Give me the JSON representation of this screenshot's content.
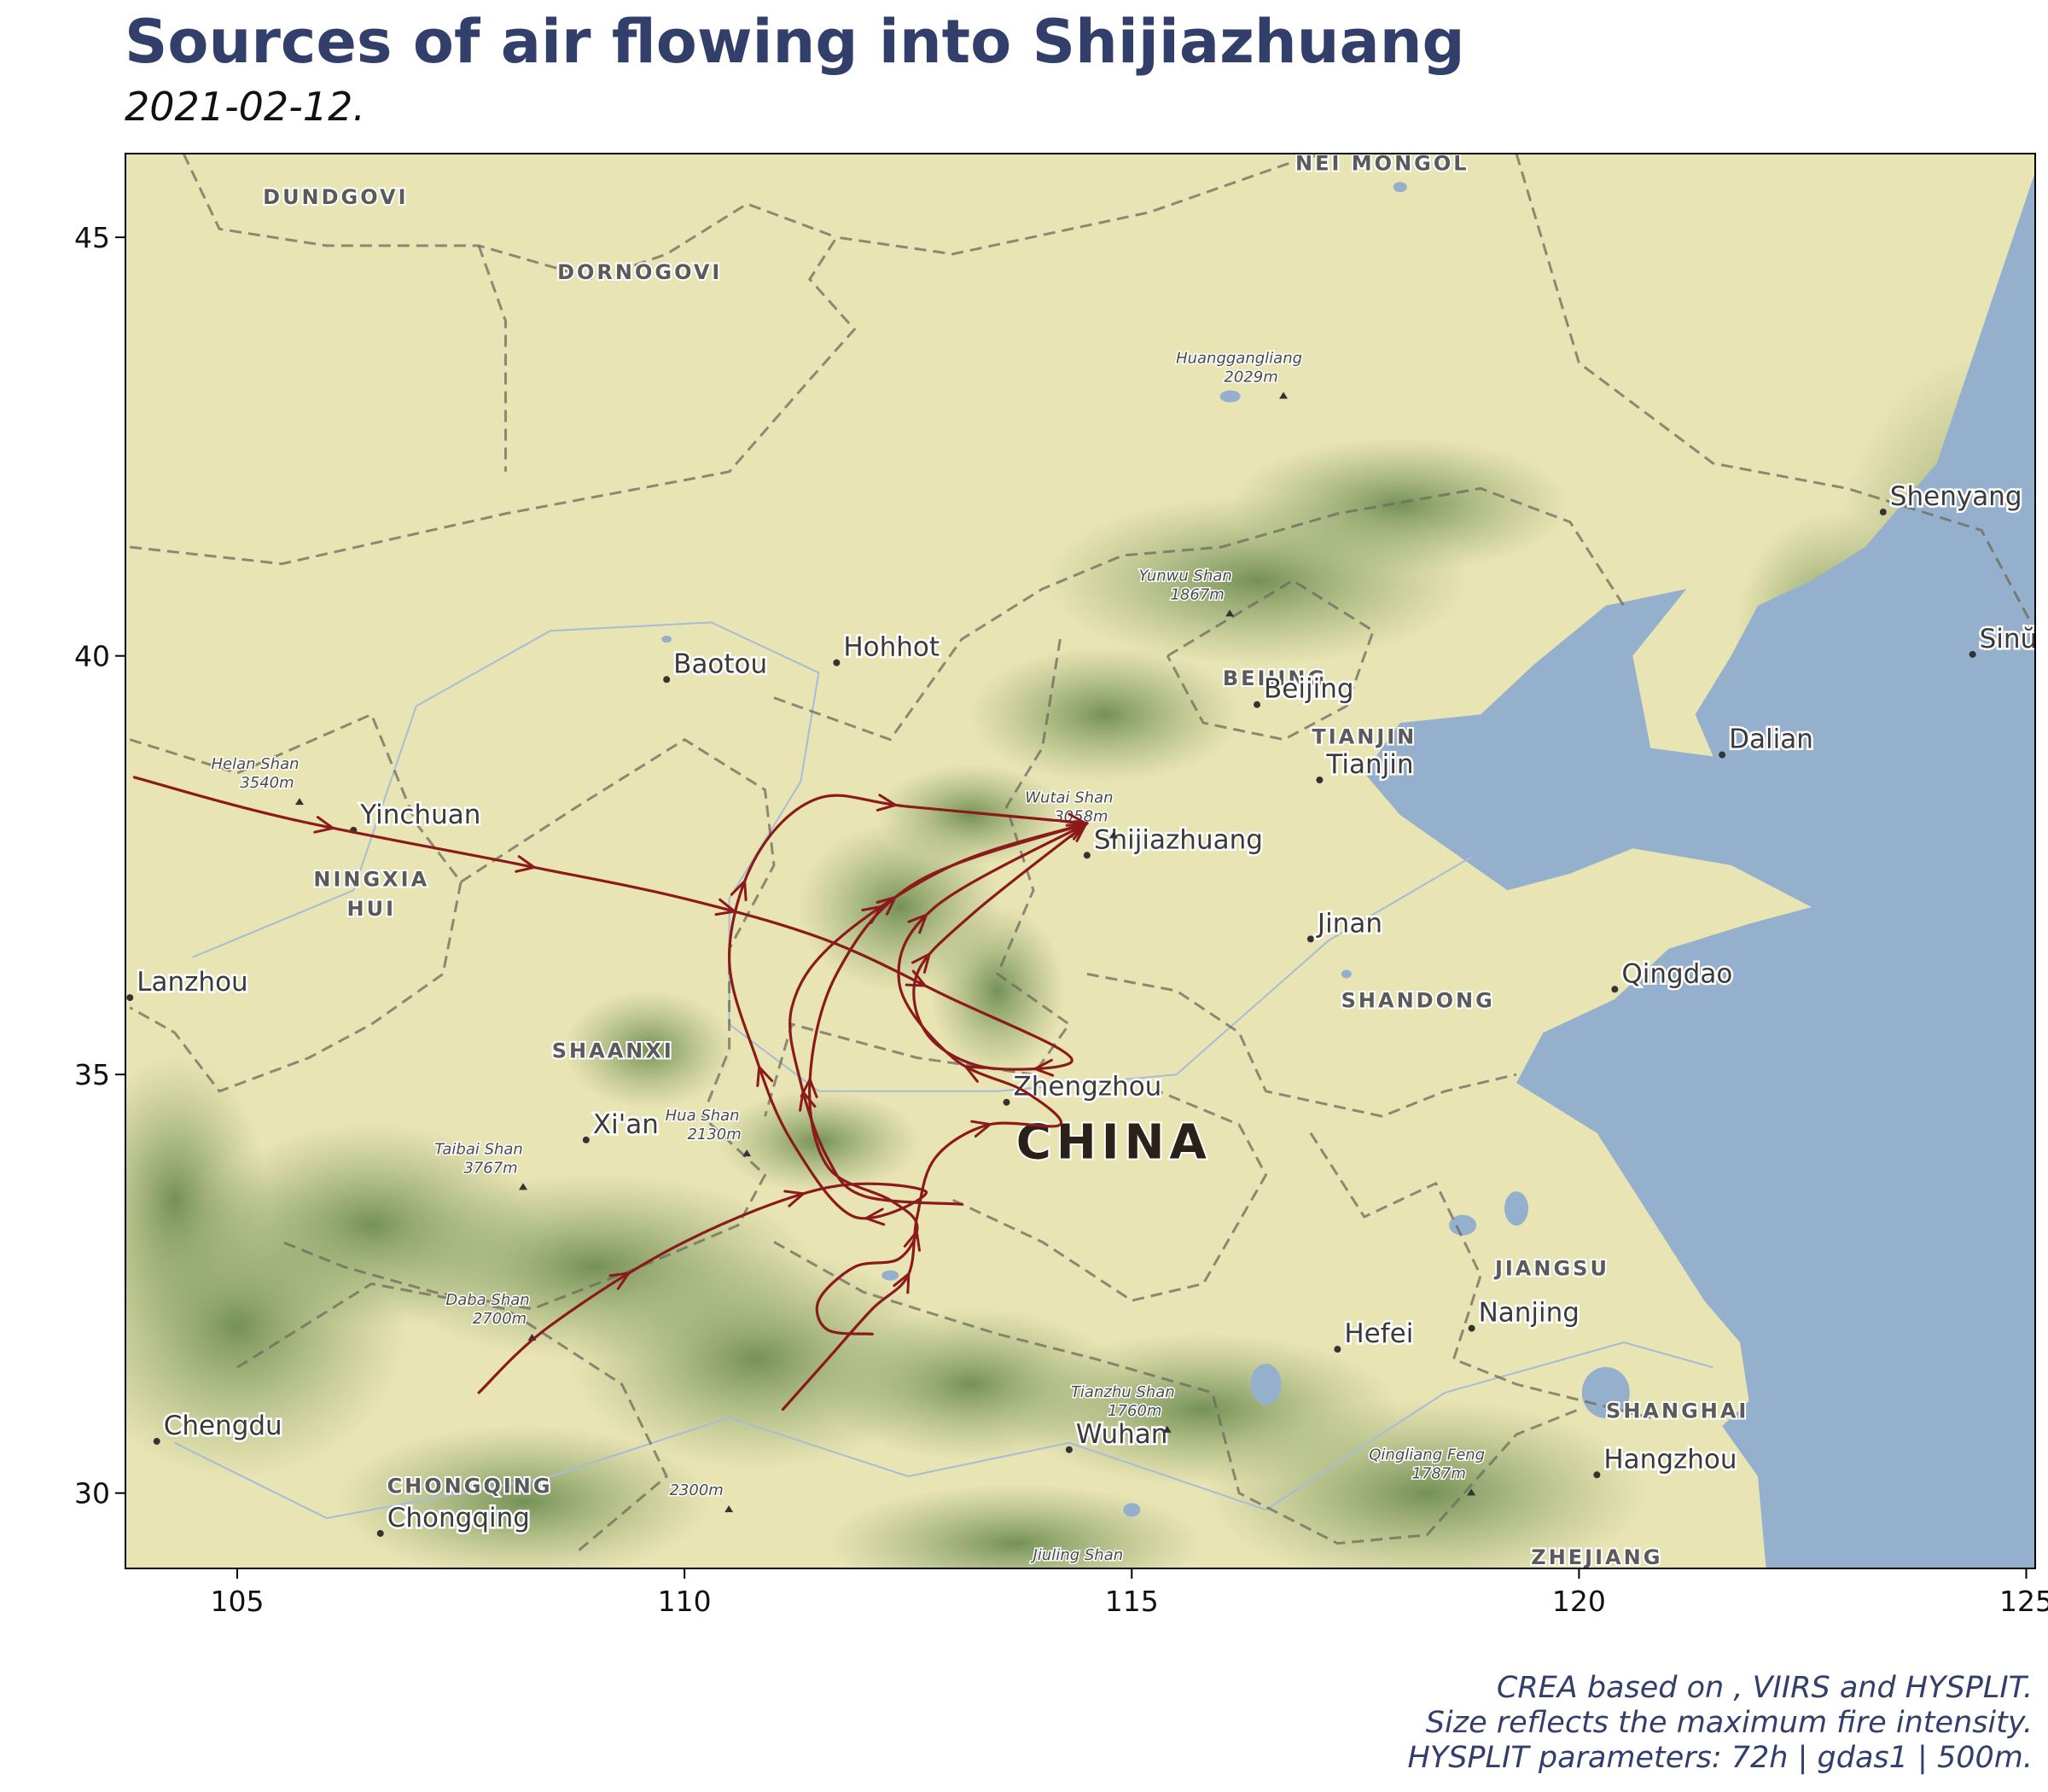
{
  "title": "Sources of air flowing into Shijiazhuang",
  "subtitle": "2021-02-12.",
  "caption": [
    "CREA based on , VIIRS and HYSPLIT.",
    "Size reflects the maximum fire intensity.",
    "HYSPLIT parameters: 72h | gdas1 | 500m."
  ],
  "axes": {
    "x_ticks": [
      105,
      110,
      115,
      120,
      125
    ],
    "y_ticks": [
      30,
      35,
      40,
      45
    ],
    "xlim": [
      103.75,
      125.1
    ],
    "ylim": [
      29.1,
      46.0
    ]
  },
  "colors": {
    "trajectory": "#8b1a1a",
    "land": "#e9e4b4",
    "water": "#95b0cc",
    "forest": "#7e9a5e",
    "border": "#6d6a5c",
    "title": "#333f6b"
  },
  "map_labels": {
    "regions": [
      {
        "text": "DUNDGOVI",
        "lon": 106.1,
        "lat": 45.4
      },
      {
        "text": "DORNOGOVI",
        "lon": 109.5,
        "lat": 44.5
      },
      {
        "text": "NEI MONGOL",
        "lon": 117.8,
        "lat": 45.8
      },
      {
        "text": "NINGXIA",
        "lon": 106.5,
        "lat": 37.25
      },
      {
        "text": "HUI",
        "lon": 106.5,
        "lat": 36.9
      },
      {
        "text": "SHAANXI",
        "lon": 109.2,
        "lat": 35.2
      },
      {
        "text": "BEIJING",
        "lon": 116.6,
        "lat": 39.65
      },
      {
        "text": "TIANJIN",
        "lon": 117.6,
        "lat": 38.95
      },
      {
        "text": "SHANDONG",
        "lon": 118.2,
        "lat": 35.8
      },
      {
        "text": "JIANGSU",
        "lon": 119.7,
        "lat": 32.6
      },
      {
        "text": "SHANGHAI",
        "lon": 121.1,
        "lat": 30.9
      },
      {
        "text": "CHONGQING",
        "lon": 107.6,
        "lat": 30.0
      },
      {
        "text": "ZHEJIANG",
        "lon": 120.2,
        "lat": 29.15
      }
    ],
    "cities": [
      {
        "text": "Shenyang",
        "lon": 123.4,
        "lat": 41.8
      },
      {
        "text": "Sinŭiju",
        "lon": 124.4,
        "lat": 40.1
      },
      {
        "text": "Baotou",
        "lon": 109.8,
        "lat": 39.8
      },
      {
        "text": "Hohhot",
        "lon": 111.7,
        "lat": 40.0
      },
      {
        "text": "Beijing",
        "lon": 116.4,
        "lat": 39.5
      },
      {
        "text": "Tianjin",
        "lon": 117.1,
        "lat": 38.6
      },
      {
        "text": "Dalian",
        "lon": 121.6,
        "lat": 38.9
      },
      {
        "text": "Yinchuan",
        "lon": 106.3,
        "lat": 38.0
      },
      {
        "text": "Shijiazhuang",
        "lon": 114.5,
        "lat": 37.7
      },
      {
        "text": "Jinan",
        "lon": 117.0,
        "lat": 36.7
      },
      {
        "text": "Qingdao",
        "lon": 120.4,
        "lat": 36.1
      },
      {
        "text": "Lanzhou",
        "lon": 103.8,
        "lat": 36.0
      },
      {
        "text": "Zhengzhou",
        "lon": 113.6,
        "lat": 34.75
      },
      {
        "text": "Xi'an",
        "lon": 108.9,
        "lat": 34.3
      },
      {
        "text": "Nanjing",
        "lon": 118.8,
        "lat": 32.05
      },
      {
        "text": "Hefei",
        "lon": 117.3,
        "lat": 31.8
      },
      {
        "text": "Chengdu",
        "lon": 104.1,
        "lat": 30.7
      },
      {
        "text": "Wuhan",
        "lon": 114.3,
        "lat": 30.6
      },
      {
        "text": "Hangzhou",
        "lon": 120.2,
        "lat": 30.3
      },
      {
        "text": "Chongqing",
        "lon": 106.6,
        "lat": 29.6
      }
    ],
    "peaks": [
      {
        "name": "Huanggangliang",
        "elev": "2029m",
        "lon": 116.2,
        "lat": 43.5
      },
      {
        "name": "Yunwu Shan",
        "elev": "1867m",
        "lon": 115.6,
        "lat": 40.9
      },
      {
        "name": "Helan Shan",
        "elev": "3540m",
        "lon": 105.2,
        "lat": 38.65
      },
      {
        "name": "Wutai Shan",
        "elev": "3058m",
        "lon": 114.3,
        "lat": 38.25
      },
      {
        "name": "Hua Shan",
        "elev": "2130m",
        "lon": 110.2,
        "lat": 34.45
      },
      {
        "name": "Taibai Shan",
        "elev": "3767m",
        "lon": 107.7,
        "lat": 34.05
      },
      {
        "name": "Daba Shan",
        "elev": "2700m",
        "lon": 107.8,
        "lat": 32.25
      },
      {
        "name": "",
        "elev": "2300m",
        "lon": 110.0,
        "lat": 30.2
      },
      {
        "name": "Tianzhu Shan",
        "elev": "1760m",
        "lon": 114.9,
        "lat": 31.15
      },
      {
        "name": "Qingliang Feng",
        "elev": "1787m",
        "lon": 118.3,
        "lat": 30.4
      },
      {
        "name": "Jiuling Shan",
        "elev": "",
        "lon": 114.4,
        "lat": 29.2
      }
    ],
    "country": {
      "text": "CHINA",
      "lon": 114.8,
      "lat": 34.0
    }
  },
  "trajectories": [
    {
      "id": "t1",
      "points": [
        [
          103.85,
          38.55
        ],
        [
          105.6,
          38.05
        ],
        [
          108.2,
          37.5
        ],
        [
          110.0,
          37.1
        ],
        [
          111.6,
          36.6
        ],
        [
          113.0,
          35.9
        ],
        [
          114.2,
          35.3
        ],
        [
          114.2,
          35.1
        ],
        [
          113.3,
          35.1
        ],
        [
          112.7,
          35.5
        ],
        [
          112.6,
          36.2
        ],
        [
          113.2,
          36.9
        ],
        [
          114.5,
          38.0
        ]
      ]
    },
    {
      "id": "t2",
      "points": [
        [
          113.1,
          33.45
        ],
        [
          112.0,
          33.55
        ],
        [
          111.6,
          34.0
        ],
        [
          111.3,
          34.9
        ],
        [
          111.2,
          35.8
        ],
        [
          111.7,
          36.6
        ],
        [
          113.0,
          37.5
        ],
        [
          114.5,
          38.0
        ]
      ]
    },
    {
      "id": "t3",
      "points": [
        [
          107.7,
          31.2
        ],
        [
          108.5,
          32.0
        ],
        [
          110.0,
          33.0
        ],
        [
          111.6,
          33.65
        ],
        [
          112.7,
          33.6
        ],
        [
          111.9,
          33.3
        ],
        [
          111.2,
          34.2
        ],
        [
          110.8,
          35.2
        ],
        [
          110.5,
          36.4
        ],
        [
          110.8,
          37.6
        ],
        [
          111.5,
          38.3
        ],
        [
          112.5,
          38.2
        ],
        [
          114.5,
          38.0
        ]
      ]
    },
    {
      "id": "t4",
      "points": [
        [
          111.1,
          31.0
        ],
        [
          111.6,
          31.6
        ],
        [
          112.1,
          32.2
        ],
        [
          112.5,
          32.6
        ],
        [
          112.6,
          33.3
        ],
        [
          112.8,
          34.0
        ],
        [
          113.4,
          34.4
        ],
        [
          114.2,
          34.4
        ],
        [
          113.8,
          34.8
        ],
        [
          113.0,
          35.2
        ],
        [
          112.4,
          36.1
        ],
        [
          112.8,
          37.0
        ],
        [
          114.5,
          38.0
        ]
      ]
    },
    {
      "id": "t5",
      "points": [
        [
          112.1,
          31.9
        ],
        [
          111.6,
          31.95
        ],
        [
          111.5,
          32.3
        ],
        [
          111.9,
          32.7
        ],
        [
          112.4,
          32.8
        ],
        [
          112.6,
          33.2
        ],
        [
          112.3,
          33.5
        ],
        [
          111.6,
          33.9
        ],
        [
          111.4,
          34.9
        ],
        [
          111.7,
          36.2
        ],
        [
          112.6,
          37.3
        ],
        [
          114.5,
          38.0
        ]
      ]
    }
  ]
}
